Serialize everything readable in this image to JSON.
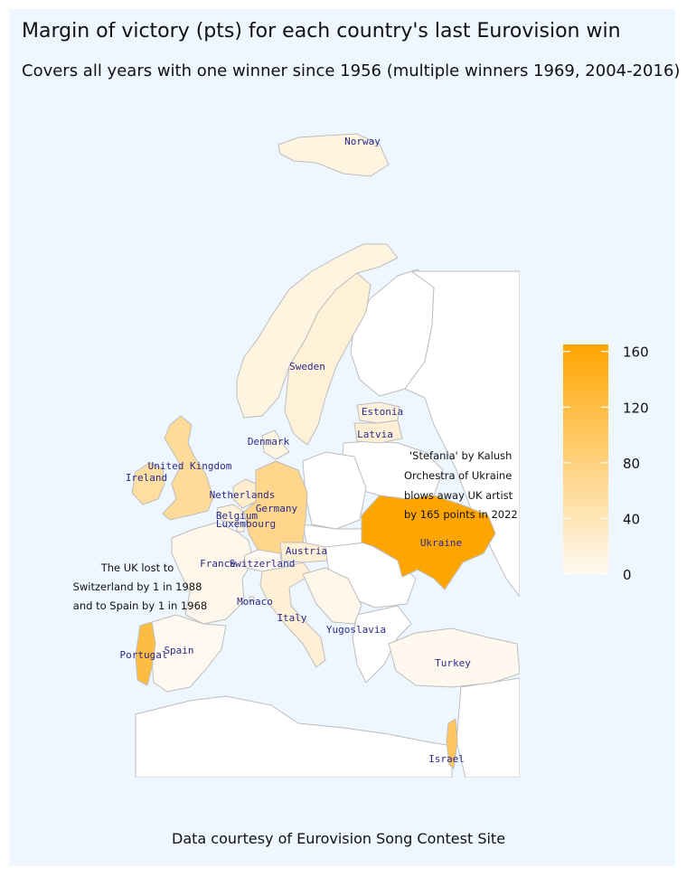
{
  "title": "Margin of victory (pts) for each country's last Eurovision win",
  "subtitle": "Covers all years with one winner since 1956 (multiple winners 1969, 2004-2016)",
  "caption": "Data courtesy of Eurovision Song Contest Site",
  "colors": {
    "panel_bg": "#eef7ff",
    "sea": "#eef7ff",
    "no_data": "#ffffff",
    "scale_low": "#fffaf2",
    "scale_high": "#ffa500",
    "border": "#bdbdbd",
    "label_text": "#2a2a8a"
  },
  "legend": {
    "min": 0,
    "max": 165,
    "ticks": [
      "0",
      "40",
      "80",
      "120",
      "160"
    ]
  },
  "countries": [
    {
      "name": "Norway",
      "margin": 12
    },
    {
      "name": "Sweden",
      "margin": 18
    },
    {
      "name": "Estonia",
      "margin": 15
    },
    {
      "name": "Latvia",
      "margin": 20
    },
    {
      "name": "Denmark",
      "margin": 10
    },
    {
      "name": "United Kingdom",
      "margin": 60
    },
    {
      "name": "Ireland",
      "margin": 55
    },
    {
      "name": "Netherlands",
      "margin": 25
    },
    {
      "name": "Germany",
      "margin": 70
    },
    {
      "name": "Belgium",
      "margin": 15
    },
    {
      "name": "Luxembourg",
      "margin": 10
    },
    {
      "name": "France",
      "margin": 5
    },
    {
      "name": "Switzerland",
      "margin": 1
    },
    {
      "name": "Austria",
      "margin": 20
    },
    {
      "name": "Monaco",
      "margin": 5
    },
    {
      "name": "Italy",
      "margin": 20
    },
    {
      "name": "Yugoslavia",
      "margin": 5
    },
    {
      "name": "Portugal",
      "margin": 120
    },
    {
      "name": "Spain",
      "margin": 1
    },
    {
      "name": "Ukraine",
      "margin": 165
    },
    {
      "name": "Turkey",
      "margin": 3
    },
    {
      "name": "Israel",
      "margin": 100
    }
  ],
  "annotations": {
    "uk": [
      "The UK lost to",
      "Switzerland by 1 in 1988",
      "and to Spain by 1 in 1968"
    ],
    "ukraine": [
      "'Stefania' by Kalush",
      "Orchestra of Ukraine",
      "blows away UK artist",
      "by 165 points in 2022"
    ]
  }
}
